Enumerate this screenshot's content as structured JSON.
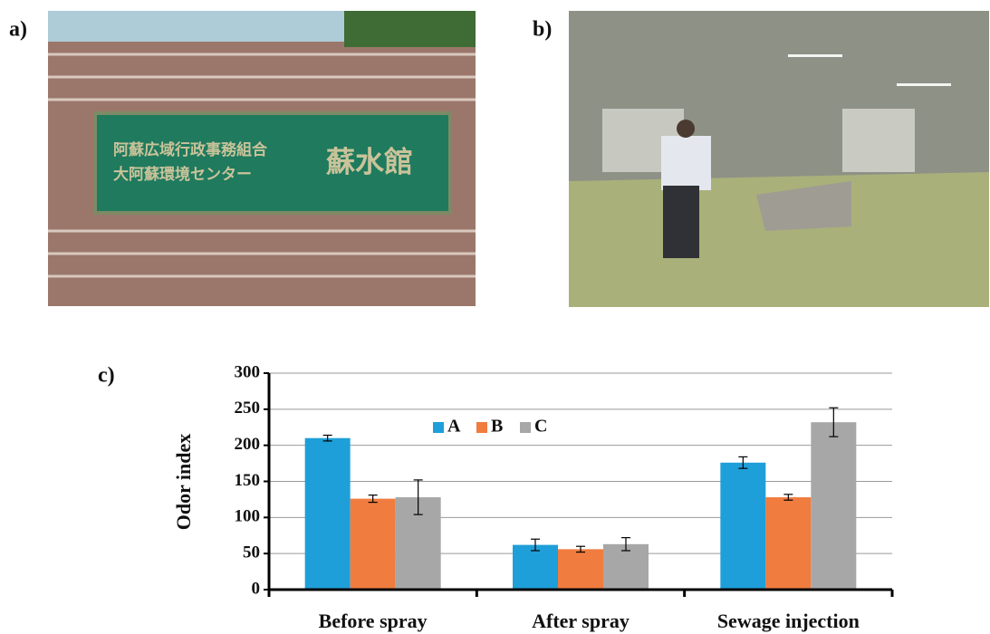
{
  "panel_labels": [
    "a)",
    "b)",
    "c)"
  ],
  "photo_a_sign": [
    "阿蘇広域行政事務組合",
    "大阿蘇環境センター",
    "蘇水館"
  ],
  "chart_data": {
    "type": "bar",
    "ylabel": "Odor index",
    "categories": [
      "Before spray",
      "After spray",
      "Sewage injection"
    ],
    "series": [
      {
        "name": "A",
        "color": "#1f9fd9",
        "values": [
          210,
          62,
          176
        ],
        "errors": [
          4,
          8,
          8
        ]
      },
      {
        "name": "B",
        "color": "#f07c3f",
        "values": [
          126,
          56,
          128
        ],
        "errors": [
          5,
          4,
          4
        ]
      },
      {
        "name": "C",
        "color": "#a7a7a7",
        "values": [
          128,
          63,
          232
        ],
        "errors": [
          24,
          9,
          20
        ]
      }
    ],
    "ylim": [
      0,
      300
    ],
    "yticks": [
      0,
      50,
      100,
      150,
      200,
      250,
      300
    ],
    "grid": true,
    "legend": "top"
  }
}
